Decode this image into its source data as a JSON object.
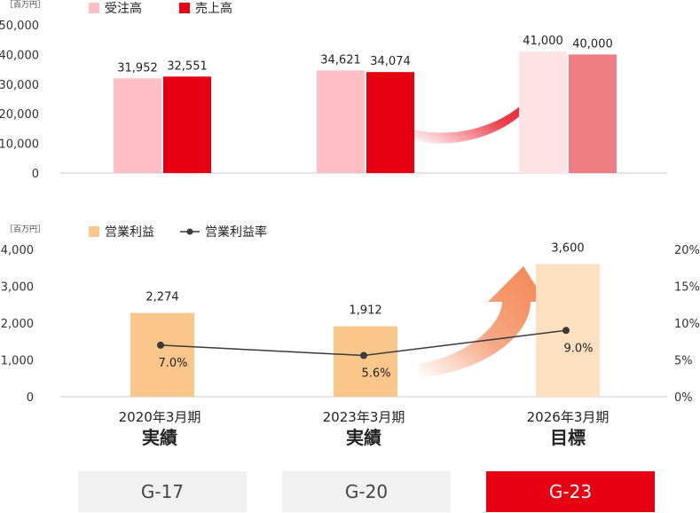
{
  "chart_data": [
    {
      "type": "bar",
      "unit": "［百万円］",
      "categories": [
        "2020年3月期 実績",
        "2023年3月期 実績",
        "2026年3月期 目標"
      ],
      "ylim": [
        0,
        50000
      ],
      "yticks": [
        "50,000",
        "40,000",
        "30,000",
        "20,000",
        "10,000",
        "0"
      ],
      "legend_position": "top-left",
      "series": [
        {
          "name": "受注高",
          "values": [
            31952,
            34621,
            41000
          ],
          "labels": [
            "31,952",
            "34,621",
            "41,000"
          ],
          "color": "#ffbfc5",
          "target_color": "#ffe2e5"
        },
        {
          "name": "売上高",
          "values": [
            32551,
            34074,
            40000
          ],
          "labels": [
            "32,551",
            "34,074",
            "40,000"
          ],
          "color": "#e60012",
          "target_color": "#ee7d84"
        }
      ]
    },
    {
      "type": "bar",
      "unit": "［百万円］",
      "categories": [
        "2020年3月期 実績",
        "2023年3月期 実績",
        "2026年3月期 目標"
      ],
      "ylim": [
        0,
        4000
      ],
      "y2lim": [
        0,
        20
      ],
      "yticks": [
        "4,000",
        "3,000",
        "2,000",
        "1,000",
        "0"
      ],
      "y2ticks": [
        "20%",
        "15%",
        "10%",
        "5%",
        "0%"
      ],
      "legend_position": "top-left",
      "series": [
        {
          "name": "営業利益",
          "type": "bar",
          "values": [
            2274,
            1912,
            3600
          ],
          "labels": [
            "2,274",
            "1,912",
            "3,600"
          ],
          "color": "#fbc68a",
          "target_color": "#fde0c0"
        },
        {
          "name": "営業利益率",
          "type": "line",
          "axis": "right",
          "values": [
            7.0,
            5.6,
            9.0
          ],
          "labels": [
            "7.0%",
            "5.6%",
            "9.0%"
          ],
          "color": "#3a3a3a"
        }
      ]
    }
  ],
  "categories": [
    {
      "period": "2020年3月期",
      "kind": "実績"
    },
    {
      "period": "2023年3月期",
      "kind": "実績"
    },
    {
      "period": "2026年3月期",
      "kind": "目標"
    }
  ],
  "plans": [
    {
      "label": "G-17",
      "active": false
    },
    {
      "label": "G-20",
      "active": false
    },
    {
      "label": "G-23",
      "active": true
    }
  ],
  "colors": {
    "accent": "#e60012",
    "axis": "#cccccc",
    "text": "#222222"
  }
}
